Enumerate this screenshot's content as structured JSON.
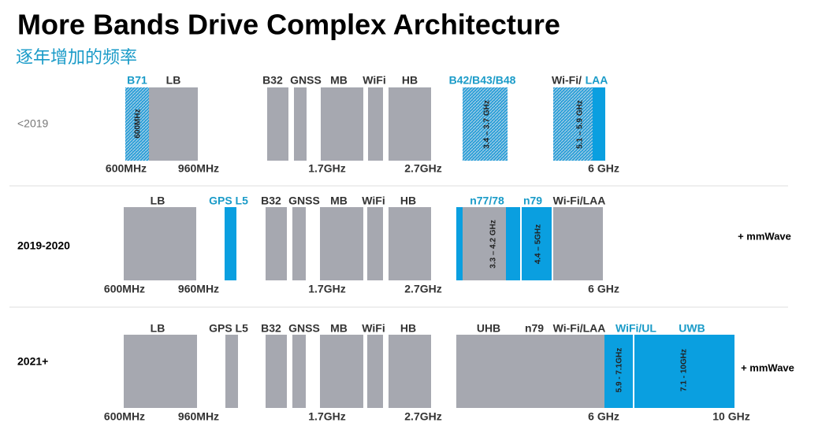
{
  "title": "More Bands Drive Complex Architecture",
  "subtitle": "逐年增加的频率",
  "rows": [
    {
      "period": "<2019",
      "band_labels": [
        "B71",
        "LB",
        "B32",
        "GNSS",
        "MB",
        "WiFi",
        "HB",
        "B42/B43/B48",
        "Wi-Fi/",
        "LAA"
      ],
      "range_labels": [
        "600MHz",
        "3.4 – 3.7 GHz",
        "5.1 – 5.9 GHz"
      ],
      "frequency_ticks": [
        "600MHz",
        "960MHz",
        "1.7GHz",
        "2.7GHz",
        "6 GHz"
      ]
    },
    {
      "period": "2019-2020",
      "band_labels": [
        "LB",
        "GPS L5",
        "B32",
        "GNSS",
        "MB",
        "WiFi",
        "HB",
        "n77/78",
        "n79",
        "Wi-Fi/LAA"
      ],
      "range_labels": [
        "3.3 – 4.2 GHz",
        "4.4 – 5GHz"
      ],
      "frequency_ticks": [
        "600MHz",
        "960MHz",
        "1.7GHz",
        "2.7GHz",
        "6 GHz"
      ],
      "note": "+ mmWave"
    },
    {
      "period": "2021+",
      "band_labels": [
        "LB",
        "GPS L5",
        "B32",
        "GNSS",
        "MB",
        "WiFi",
        "HB",
        "UHB",
        "n79",
        "Wi-Fi/LAA",
        "WiFi/UL",
        "UWB"
      ],
      "range_labels": [
        "5.9 - 7.1GHz",
        "7.1 - 10GHz"
      ],
      "frequency_ticks": [
        "600MHz",
        "960MHz",
        "1.7GHz",
        "2.7GHz",
        "6 GHz",
        "10 GHz"
      ],
      "note": "+ mmWave"
    }
  ]
}
